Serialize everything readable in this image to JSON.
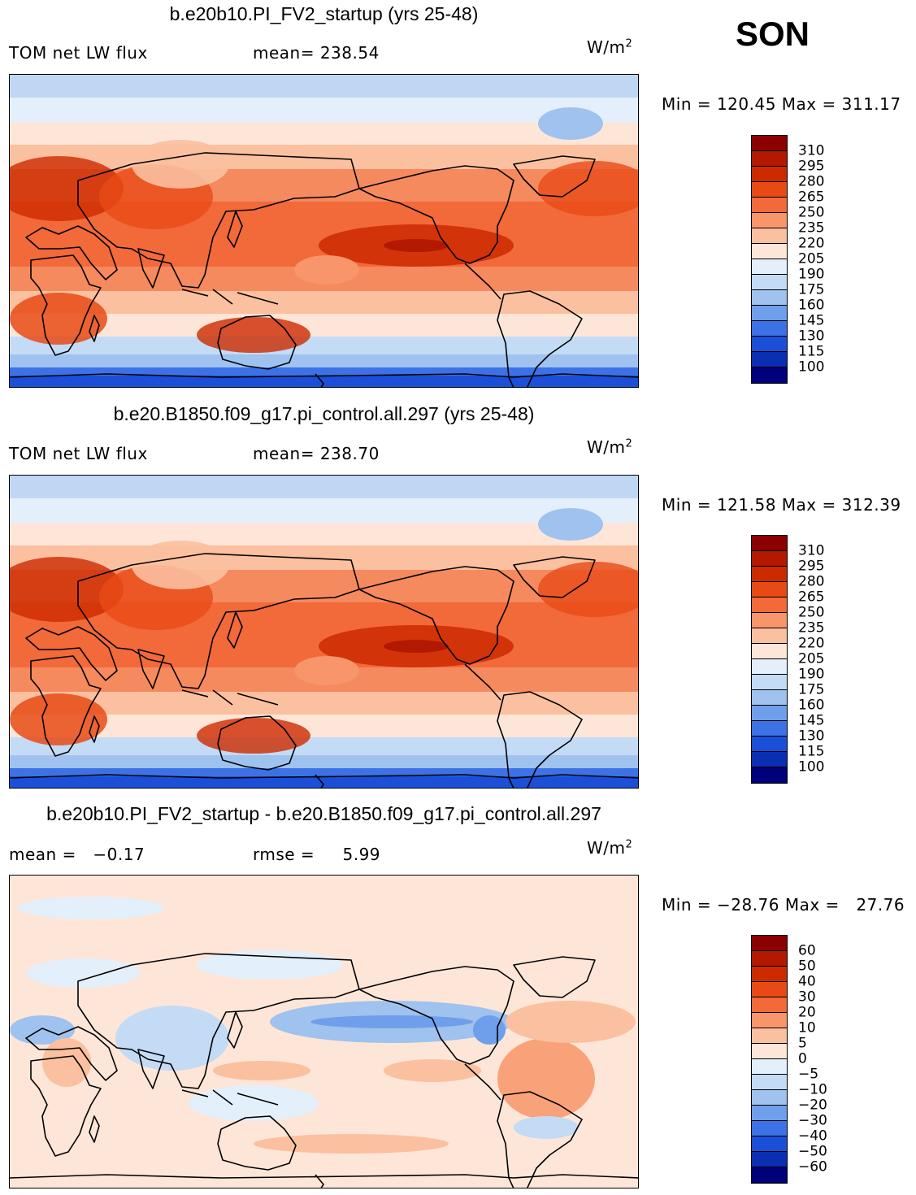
{
  "season": "SON",
  "panels": [
    {
      "title": "b.e20b10.PI_FV2_startup (yrs 25-48)",
      "left_label": "TOM net LW flux",
      "center_label": "mean= 238.54",
      "units_base": "W/m",
      "units_exp": "2",
      "minmax": "Min = 120.45 Max = 311.17",
      "colorbar": {
        "labels": [
          "310",
          "295",
          "280",
          "265",
          "250",
          "235",
          "220",
          "205",
          "190",
          "175",
          "160",
          "145",
          "130",
          "115",
          "100"
        ],
        "colors": [
          "#8b0000",
          "#b31800",
          "#cd2a00",
          "#e84a16",
          "#f2693a",
          "#f8956a",
          "#fbc0a0",
          "#fde6d8",
          "#e3effa",
          "#c3dbf5",
          "#9fc2ef",
          "#6f9feb",
          "#3c72e6",
          "#1c4fd8",
          "#0a2fb3",
          "#00007a"
        ]
      },
      "pattern": "base"
    },
    {
      "title": "b.e20.B1850.f09_g17.pi_control.all.297 (yrs 25-48)",
      "left_label": "TOM net LW flux",
      "center_label": "mean= 238.70",
      "units_base": "W/m",
      "units_exp": "2",
      "minmax": "Min = 121.58 Max = 312.39",
      "colorbar": {
        "labels": [
          "310",
          "295",
          "280",
          "265",
          "250",
          "235",
          "220",
          "205",
          "190",
          "175",
          "160",
          "145",
          "130",
          "115",
          "100"
        ],
        "colors": [
          "#8b0000",
          "#b31800",
          "#cd2a00",
          "#e84a16",
          "#f2693a",
          "#f8956a",
          "#fbc0a0",
          "#fde6d8",
          "#e3effa",
          "#c3dbf5",
          "#9fc2ef",
          "#6f9feb",
          "#3c72e6",
          "#1c4fd8",
          "#0a2fb3",
          "#00007a"
        ]
      },
      "pattern": "base"
    },
    {
      "title": "b.e20b10.PI_FV2_startup - b.e20.B1850.f09_g17.pi_control.all.297",
      "left_label": "mean =   −0.17",
      "center_label": "rmse =     5.99",
      "units_base": "W/m",
      "units_exp": "2",
      "minmax": "Min = −28.76 Max =   27.76",
      "colorbar": {
        "labels": [
          "60",
          "50",
          "40",
          "30",
          "20",
          "10",
          "5",
          "0",
          "−5",
          "−10",
          "−20",
          "−30",
          "−40",
          "−50",
          "−60"
        ],
        "colors": [
          "#8b0000",
          "#b31800",
          "#cd2a00",
          "#e84a16",
          "#f2693a",
          "#f8956a",
          "#fbc0a0",
          "#fde6d8",
          "#e3effa",
          "#c3dbf5",
          "#9fc2ef",
          "#6f9feb",
          "#3c72e6",
          "#1c4fd8",
          "#0a2fb3",
          "#00007a"
        ]
      },
      "pattern": "diff"
    }
  ]
}
